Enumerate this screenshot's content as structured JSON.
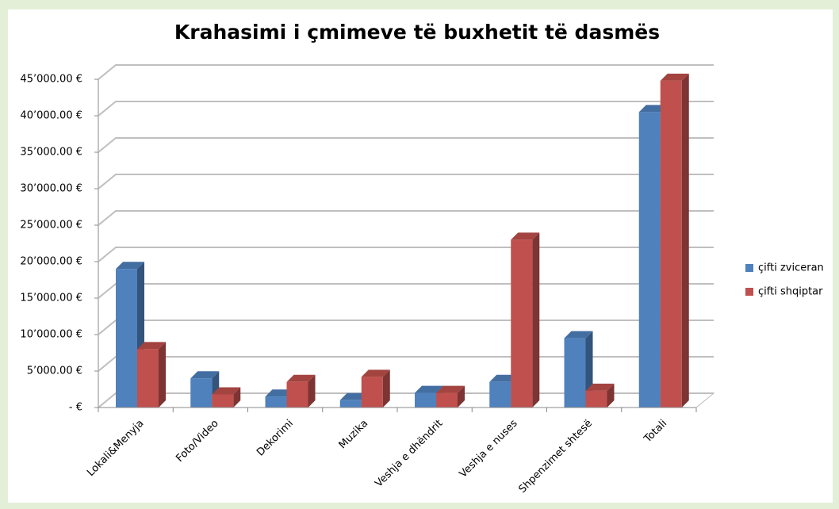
{
  "chart_data": {
    "type": "bar3d",
    "title": "Krahasimi i çmimeve të buxhetit të dasmës",
    "categories": [
      "Lokali&Menyja",
      "Foto/Video",
      "Dekorimi",
      "Muzika",
      "Veshja e dhëndrit",
      "Veshja e nuses",
      "Shpenzimet shtesë",
      "Totali"
    ],
    "series": [
      {
        "name": "çifti zviceran",
        "color": "#4f81bd",
        "values": [
          19000,
          4000,
          1500,
          1000,
          2000,
          3500,
          9500,
          40500
        ]
      },
      {
        "name": "çifti shqiptar",
        "color": "#c0504d",
        "values": [
          8000,
          1800,
          3500,
          4200,
          2000,
          23000,
          2300,
          44800
        ]
      }
    ],
    "ylim": [
      0,
      45000
    ],
    "yticks": [
      {
        "value": 0,
        "label": "-   €"
      },
      {
        "value": 5000,
        "label": "5’000.00 €"
      },
      {
        "value": 10000,
        "label": "10’000.00 €"
      },
      {
        "value": 15000,
        "label": "15’000.00 €"
      },
      {
        "value": 20000,
        "label": "20’000.00 €"
      },
      {
        "value": 25000,
        "label": "25’000.00 €"
      },
      {
        "value": 30000,
        "label": "30’000.00 €"
      },
      {
        "value": 35000,
        "label": "35’000.00 €"
      },
      {
        "value": 40000,
        "label": "40’000.00 €"
      },
      {
        "value": 45000,
        "label": "45’000.00 €"
      }
    ],
    "grid": true,
    "legend": "right"
  }
}
